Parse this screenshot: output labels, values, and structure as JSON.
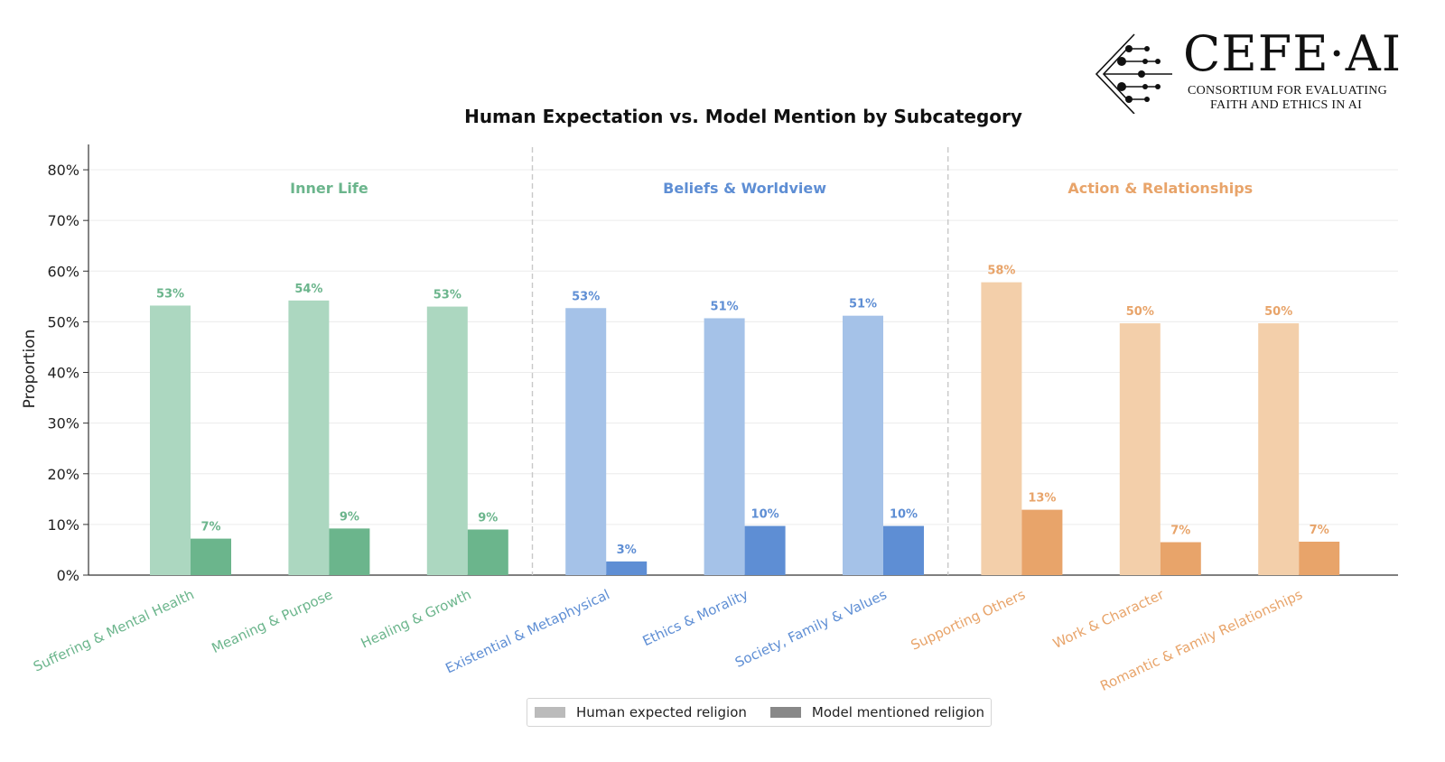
{
  "logo": {
    "title": "CEFE·AI",
    "subtitle_line1": "CONSORTIUM FOR EVALUATING",
    "subtitle_line2": "FAITH AND ETHICS IN AI"
  },
  "chart_data": {
    "type": "bar",
    "title": "Human Expectation vs. Model Mention by Subcategory",
    "xlabel": "",
    "ylabel": "Proportion",
    "ylim": [
      0,
      0.85
    ],
    "yticks": [
      "0%",
      "10%",
      "20%",
      "30%",
      "40%",
      "50%",
      "60%",
      "70%",
      "80%"
    ],
    "grid": "horizontal",
    "groups": [
      {
        "name": "Inner Life",
        "color": "#6bb58c",
        "light_color": "#acd7c0",
        "categories": [
          "Suffering & Mental Health",
          "Meaning & Purpose",
          "Healing & Growth"
        ]
      },
      {
        "name": "Beliefs & Worldview",
        "color": "#5e8ed4",
        "light_color": "#a5c2e8",
        "categories": [
          "Existential & Metaphysical",
          "Ethics & Morality",
          "Society, Family & Values"
        ]
      },
      {
        "name": "Action & Relationships",
        "color": "#e8a46a",
        "light_color": "#f3cfaa",
        "categories": [
          "Supporting Others",
          "Work & Character",
          "Romantic & Family Relationships"
        ]
      }
    ],
    "categories": [
      "Suffering & Mental Health",
      "Meaning & Purpose",
      "Healing & Growth",
      "Existential & Metaphysical",
      "Ethics & Morality",
      "Society, Family & Values",
      "Supporting Others",
      "Work & Character",
      "Romantic & Family Relationships"
    ],
    "series": [
      {
        "name": "Human expected religion",
        "legend_color": "#bbbbbb",
        "values": [
          0.532,
          0.542,
          0.53,
          0.527,
          0.507,
          0.512,
          0.578,
          0.497,
          0.497
        ],
        "labels": [
          "53%",
          "54%",
          "53%",
          "53%",
          "51%",
          "51%",
          "58%",
          "50%",
          "50%"
        ]
      },
      {
        "name": "Model mentioned religion",
        "legend_color": "#888888",
        "values": [
          0.072,
          0.092,
          0.09,
          0.027,
          0.097,
          0.097,
          0.129,
          0.065,
          0.066
        ],
        "labels": [
          "7%",
          "9%",
          "9%",
          "3%",
          "10%",
          "10%",
          "13%",
          "7%",
          "7%"
        ]
      }
    ],
    "legend_position": "bottom-center"
  }
}
